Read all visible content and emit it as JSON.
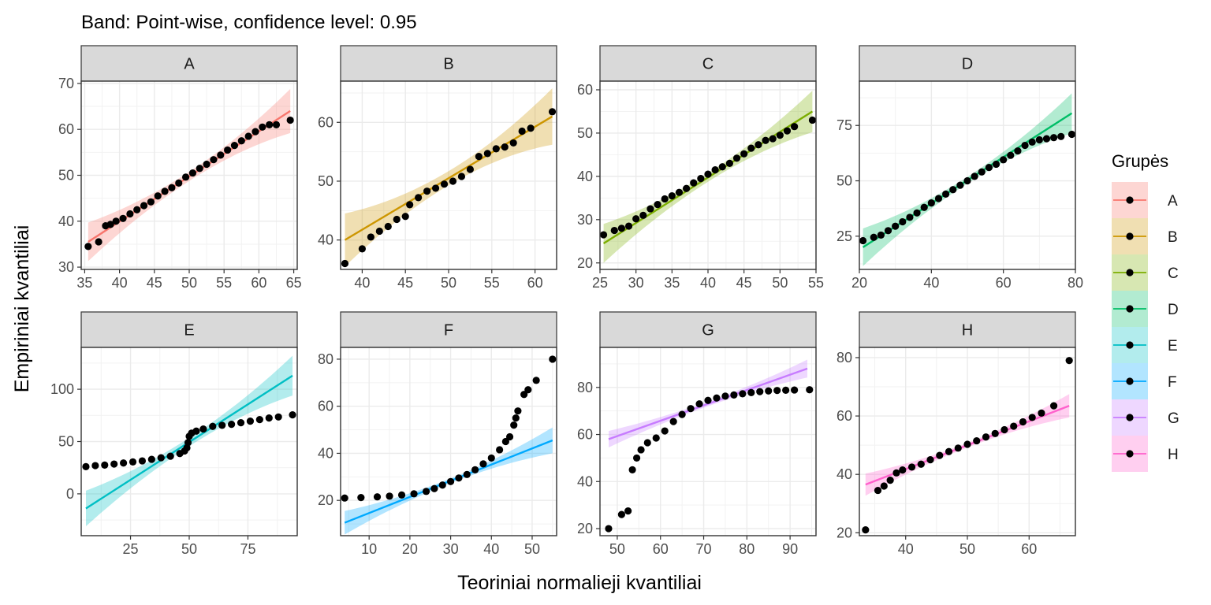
{
  "chart_data": {
    "type": "scatter",
    "title": "Band: Point-wise, confidence level: 0.95",
    "xlabel": "Teoriniai normalieji kvantiliai",
    "ylabel": "Empiriniai kvantiliai",
    "legend": {
      "title": "Grupės",
      "placement": "right",
      "entries": [
        "A",
        "B",
        "C",
        "D",
        "E",
        "F",
        "G",
        "H"
      ]
    },
    "grid": true,
    "marker_color": "#000000",
    "panels": [
      {
        "name": "A",
        "color": "#F8766D",
        "xlim": [
          34.5,
          65.5
        ],
        "ylim": [
          29.5,
          70.5
        ],
        "xticks": [
          35,
          40,
          45,
          50,
          55,
          60,
          65
        ],
        "yticks": [
          30,
          40,
          50,
          60,
          70
        ],
        "line": [
          [
            35.5,
            35.5
          ],
          [
            64.5,
            64.0
          ]
        ],
        "band_half_width": {
          "start": 4.2,
          "mid": 1.0,
          "end": 4.8
        },
        "points": [
          [
            35.5,
            34.5
          ],
          [
            37.0,
            35.5
          ],
          [
            38.0,
            39.0
          ],
          [
            38.7,
            39.3
          ],
          [
            39.5,
            40.0
          ],
          [
            40.5,
            40.6
          ],
          [
            41.5,
            41.6
          ],
          [
            42.5,
            42.5
          ],
          [
            43.5,
            43.4
          ],
          [
            44.5,
            44.2
          ],
          [
            45.5,
            45.5
          ],
          [
            46.5,
            46.5
          ],
          [
            47.5,
            47.3
          ],
          [
            48.5,
            48.3
          ],
          [
            49.5,
            49.6
          ],
          [
            50.5,
            50.5
          ],
          [
            51.5,
            51.5
          ],
          [
            52.5,
            52.4
          ],
          [
            53.5,
            53.4
          ],
          [
            54.5,
            54.4
          ],
          [
            55.5,
            55.5
          ],
          [
            56.5,
            56.5
          ],
          [
            57.5,
            57.5
          ],
          [
            58.5,
            58.5
          ],
          [
            59.5,
            59.5
          ],
          [
            60.5,
            60.5
          ],
          [
            61.5,
            61.0
          ],
          [
            62.5,
            61.0
          ],
          [
            64.5,
            62.0
          ]
        ]
      },
      {
        "name": "B",
        "color": "#CD9600",
        "xlim": [
          37.5,
          62.5
        ],
        "ylim": [
          35.0,
          67.0
        ],
        "xticks": [
          40,
          45,
          50,
          55,
          60
        ],
        "yticks": [
          40,
          50,
          60
        ],
        "line": [
          [
            38.0,
            40.0
          ],
          [
            62.0,
            61.0
          ]
        ],
        "band_half_width": {
          "start": 4.5,
          "mid": 1.2,
          "end": 4.8
        },
        "points": [
          [
            38.0,
            36.0
          ],
          [
            40.0,
            38.5
          ],
          [
            41.0,
            40.5
          ],
          [
            42.0,
            41.5
          ],
          [
            43.0,
            42.3
          ],
          [
            44.0,
            43.5
          ],
          [
            45.0,
            44.0
          ],
          [
            45.5,
            46.0
          ],
          [
            46.5,
            47.2
          ],
          [
            47.5,
            48.3
          ],
          [
            48.5,
            48.8
          ],
          [
            49.5,
            49.5
          ],
          [
            50.5,
            50.0
          ],
          [
            51.5,
            50.8
          ],
          [
            52.5,
            52.0
          ],
          [
            53.5,
            54.2
          ],
          [
            54.5,
            54.7
          ],
          [
            55.5,
            55.5
          ],
          [
            56.5,
            55.8
          ],
          [
            57.5,
            56.5
          ],
          [
            58.5,
            58.5
          ],
          [
            59.5,
            59.0
          ],
          [
            62.0,
            61.8
          ]
        ]
      },
      {
        "name": "C",
        "color": "#7CAE00",
        "xlim": [
          25.0,
          55.0
        ],
        "ylim": [
          18.5,
          62.0
        ],
        "xticks": [
          25,
          30,
          35,
          40,
          45,
          50,
          55
        ],
        "yticks": [
          20,
          30,
          40,
          50,
          60
        ],
        "line": [
          [
            25.5,
            24.5
          ],
          [
            54.5,
            55.0
          ]
        ],
        "band_half_width": {
          "start": 4.5,
          "mid": 1.0,
          "end": 4.8
        },
        "points": [
          [
            25.5,
            26.5
          ],
          [
            27.0,
            27.5
          ],
          [
            28.0,
            28.0
          ],
          [
            29.0,
            28.5
          ],
          [
            30.0,
            30.2
          ],
          [
            31.0,
            31.0
          ],
          [
            32.0,
            32.5
          ],
          [
            33.0,
            33.5
          ],
          [
            34.0,
            34.8
          ],
          [
            35.0,
            35.5
          ],
          [
            36.0,
            36.3
          ],
          [
            37.0,
            37.2
          ],
          [
            38.0,
            38.5
          ],
          [
            39.0,
            39.5
          ],
          [
            40.0,
            40.5
          ],
          [
            41.0,
            41.5
          ],
          [
            42.0,
            42.2
          ],
          [
            43.0,
            43.0
          ],
          [
            44.0,
            44.2
          ],
          [
            45.0,
            45.2
          ],
          [
            46.0,
            46.5
          ],
          [
            47.0,
            47.3
          ],
          [
            48.0,
            48.3
          ],
          [
            49.0,
            48.7
          ],
          [
            50.0,
            49.5
          ],
          [
            51.0,
            50.5
          ],
          [
            52.0,
            51.5
          ],
          [
            54.5,
            53.0
          ]
        ]
      },
      {
        "name": "D",
        "color": "#00BE67",
        "xlim": [
          20.0,
          80.0
        ],
        "ylim": [
          10.0,
          95.0
        ],
        "xticks": [
          20,
          40,
          60,
          80
        ],
        "yticks": [
          25,
          50,
          75
        ],
        "line": [
          [
            21.0,
            20.0
          ],
          [
            79.0,
            80.5
          ]
        ],
        "band_half_width": {
          "start": 8.5,
          "mid": 1.5,
          "end": 9.0
        },
        "points": [
          [
            21.0,
            23.0
          ],
          [
            24.0,
            24.5
          ],
          [
            26.0,
            25.5
          ],
          [
            28.0,
            27.5
          ],
          [
            30.0,
            29.5
          ],
          [
            32.0,
            31.5
          ],
          [
            34.0,
            33.5
          ],
          [
            36.0,
            35.5
          ],
          [
            38.0,
            38.0
          ],
          [
            40.0,
            40.0
          ],
          [
            42.0,
            42.0
          ],
          [
            44.0,
            44.0
          ],
          [
            46.0,
            46.0
          ],
          [
            48.0,
            48.0
          ],
          [
            50.0,
            50.0
          ],
          [
            52.0,
            52.0
          ],
          [
            54.0,
            54.0
          ],
          [
            56.0,
            56.0
          ],
          [
            58.0,
            57.5
          ],
          [
            60.0,
            59.5
          ],
          [
            62.0,
            61.5
          ],
          [
            64.0,
            63.5
          ],
          [
            66.0,
            66.0
          ],
          [
            68.0,
            67.5
          ],
          [
            70.0,
            68.5
          ],
          [
            72.0,
            69.0
          ],
          [
            74.0,
            69.5
          ],
          [
            76.0,
            70.0
          ],
          [
            79.0,
            71.0
          ]
        ]
      },
      {
        "name": "E",
        "color": "#00BFC4",
        "xlim": [
          4.0,
          96.0
        ],
        "ylim": [
          -40.0,
          140.0
        ],
        "xticks": [
          25,
          50,
          75
        ],
        "yticks": [
          0,
          50,
          100
        ],
        "line": [
          [
            6.0,
            -14.0
          ],
          [
            94.0,
            113.0
          ]
        ],
        "band_half_width": {
          "start": 17.0,
          "mid": 4.0,
          "end": 19.0
        },
        "points": [
          [
            6.0,
            26.0
          ],
          [
            10.0,
            27.0
          ],
          [
            14.0,
            27.5
          ],
          [
            18.0,
            28.5
          ],
          [
            22.0,
            29.5
          ],
          [
            26.0,
            30.5
          ],
          [
            30.0,
            31.5
          ],
          [
            34.0,
            33.0
          ],
          [
            38.0,
            34.5
          ],
          [
            42.0,
            36.0
          ],
          [
            46.0,
            38.5
          ],
          [
            48.0,
            41.0
          ],
          [
            49.0,
            44.0
          ],
          [
            49.5,
            49.0
          ],
          [
            50.0,
            55.0
          ],
          [
            51.0,
            58.0
          ],
          [
            53.0,
            60.0
          ],
          [
            56.0,
            62.0
          ],
          [
            60.0,
            64.5
          ],
          [
            64.0,
            65.5
          ],
          [
            68.0,
            66.5
          ],
          [
            72.0,
            68.0
          ],
          [
            76.0,
            69.5
          ],
          [
            80.0,
            71.0
          ],
          [
            84.0,
            72.5
          ],
          [
            88.0,
            73.5
          ],
          [
            94.0,
            75.5
          ]
        ]
      },
      {
        "name": "F",
        "color": "#00A9FF",
        "xlim": [
          3.0,
          56.0
        ],
        "ylim": [
          5.0,
          85.0
        ],
        "xticks": [
          10,
          20,
          30,
          40,
          50
        ],
        "yticks": [
          20,
          40,
          60,
          80
        ],
        "line": [
          [
            4.0,
            10.5
          ],
          [
            55.0,
            45.5
          ]
        ],
        "band_half_width": {
          "start": 5.0,
          "mid": 1.0,
          "end": 5.5
        },
        "points": [
          [
            4.0,
            21.0
          ],
          [
            8.0,
            21.2
          ],
          [
            12.0,
            21.5
          ],
          [
            15.0,
            21.8
          ],
          [
            18.0,
            22.3
          ],
          [
            21.0,
            22.8
          ],
          [
            24.0,
            23.8
          ],
          [
            26.0,
            25.0
          ],
          [
            28.0,
            26.5
          ],
          [
            30.0,
            28.0
          ],
          [
            32.0,
            29.5
          ],
          [
            34.0,
            31.0
          ],
          [
            36.0,
            33.0
          ],
          [
            38.0,
            35.5
          ],
          [
            40.0,
            38.0
          ],
          [
            42.0,
            41.5
          ],
          [
            43.5,
            45.0
          ],
          [
            44.5,
            47.0
          ],
          [
            45.5,
            52.0
          ],
          [
            46.0,
            55.0
          ],
          [
            46.5,
            58.0
          ],
          [
            48.0,
            65.0
          ],
          [
            49.0,
            67.0
          ],
          [
            51.0,
            71.0
          ],
          [
            55.0,
            80.0
          ]
        ]
      },
      {
        "name": "G",
        "color": "#C77CFF",
        "xlim": [
          46.0,
          96.0
        ],
        "ylim": [
          17.0,
          97.0
        ],
        "xticks": [
          50,
          60,
          70,
          80,
          90
        ],
        "yticks": [
          20,
          40,
          60,
          80
        ],
        "line": [
          [
            48.0,
            58.0
          ],
          [
            94.0,
            88.0
          ]
        ],
        "band_half_width": {
          "start": 3.5,
          "mid": 1.0,
          "end": 3.8
        },
        "points": [
          [
            48.0,
            20.0
          ],
          [
            51.0,
            26.0
          ],
          [
            52.5,
            27.5
          ],
          [
            53.5,
            45.0
          ],
          [
            54.5,
            50.0
          ],
          [
            55.5,
            53.5
          ],
          [
            57.0,
            56.5
          ],
          [
            59.0,
            58.5
          ],
          [
            61.0,
            61.5
          ],
          [
            63.0,
            65.5
          ],
          [
            65.0,
            68.5
          ],
          [
            67.0,
            71.0
          ],
          [
            69.0,
            73.0
          ],
          [
            71.0,
            74.5
          ],
          [
            73.0,
            75.5
          ],
          [
            75.0,
            76.3
          ],
          [
            77.0,
            76.8
          ],
          [
            79.0,
            77.3
          ],
          [
            81.0,
            77.8
          ],
          [
            83.0,
            78.2
          ],
          [
            85.0,
            78.5
          ],
          [
            87.0,
            78.7
          ],
          [
            89.0,
            78.8
          ],
          [
            91.0,
            78.9
          ],
          [
            94.5,
            79.0
          ]
        ]
      },
      {
        "name": "H",
        "color": "#FF61CC",
        "xlim": [
          32.5,
          67.5
        ],
        "ylim": [
          19.0,
          83.5
        ],
        "xticks": [
          40,
          50,
          60
        ],
        "yticks": [
          20,
          40,
          60,
          80
        ],
        "line": [
          [
            33.5,
            36.5
          ],
          [
            66.5,
            63.5
          ]
        ],
        "band_half_width": {
          "start": 3.8,
          "mid": 0.8,
          "end": 4.0
        },
        "points": [
          [
            33.5,
            21.0
          ],
          [
            35.5,
            34.5
          ],
          [
            36.5,
            36.0
          ],
          [
            37.5,
            38.0
          ],
          [
            38.5,
            40.5
          ],
          [
            39.5,
            41.5
          ],
          [
            41.0,
            42.5
          ],
          [
            42.5,
            43.5
          ],
          [
            44.0,
            45.0
          ],
          [
            45.5,
            46.5
          ],
          [
            47.0,
            47.8
          ],
          [
            48.5,
            49.0
          ],
          [
            50.0,
            50.3
          ],
          [
            51.5,
            51.5
          ],
          [
            53.0,
            52.8
          ],
          [
            54.5,
            54.0
          ],
          [
            56.0,
            55.3
          ],
          [
            57.5,
            56.5
          ],
          [
            59.0,
            58.0
          ],
          [
            60.5,
            59.5
          ],
          [
            62.0,
            61.0
          ],
          [
            64.0,
            63.5
          ],
          [
            66.5,
            79.0
          ]
        ]
      }
    ]
  }
}
